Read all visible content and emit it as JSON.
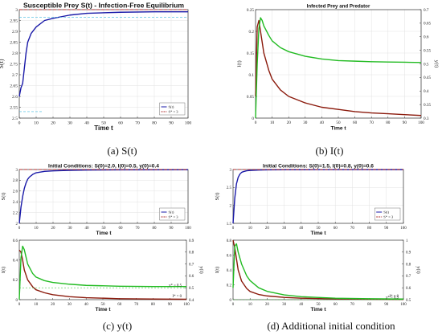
{
  "captions": {
    "a": "(a) S(t)",
    "b": "(b) I(t)",
    "c": "(c) y(t)",
    "d": "(d) Additional initial condition"
  },
  "colors": {
    "S": "#1a1aa8",
    "ref": "#b03030",
    "I": "#8b1a0c",
    "y": "#22bb22",
    "dashCyan": "#3fb7e0",
    "dashYellow": "#c8c83a"
  },
  "chart_data": [
    {
      "id": "a",
      "type": "line",
      "title": "Susceptible Prey S(t) - Infection-Free Equilibrium",
      "xlabel": "Time t",
      "ylabel": "S(t)",
      "xlim": [
        0,
        100
      ],
      "ylim": [
        2.5,
        3.0
      ],
      "xticks": [
        0,
        10,
        20,
        30,
        40,
        50,
        60,
        70,
        80,
        90,
        100
      ],
      "yticks": [
        2.5,
        2.55,
        2.6,
        2.65,
        2.7,
        2.75,
        2.8,
        2.85,
        2.9,
        2.95,
        3
      ],
      "grid": true,
      "legend": {
        "position": "lower-right",
        "entries": [
          "S(t)",
          "S* = 3"
        ]
      },
      "series": [
        {
          "name": "S(t)",
          "x": [
            0,
            1,
            2,
            3,
            4,
            5,
            7,
            10,
            15,
            20,
            30,
            40,
            60,
            80,
            100
          ],
          "y": [
            2.6,
            2.64,
            2.66,
            2.73,
            2.8,
            2.85,
            2.89,
            2.92,
            2.95,
            2.96,
            2.975,
            2.983,
            2.988,
            2.99,
            2.99
          ]
        },
        {
          "name": "S* = 3",
          "x": [
            0,
            100
          ],
          "y": [
            3,
            3
          ]
        }
      ]
    },
    {
      "id": "b",
      "type": "line",
      "title": "Infected Prey and Predator",
      "xlabel": "Time t",
      "ylabel": "I(t)",
      "ylabel_right": "y(t)",
      "xlim": [
        0,
        100
      ],
      "ylim": [
        0,
        0.25
      ],
      "ylim_right": [
        0.3,
        0.7
      ],
      "xticks": [
        0,
        10,
        20,
        30,
        40,
        50,
        60,
        70,
        80,
        90,
        100
      ],
      "yticks": [
        0,
        0.05,
        0.1,
        0.15,
        0.2,
        0.25
      ],
      "yticks_right": [
        0.3,
        0.35,
        0.4,
        0.45,
        0.5,
        0.55,
        0.6,
        0.65,
        0.7
      ],
      "grid": true,
      "series": [
        {
          "name": "I(t)",
          "x": [
            0,
            1,
            2,
            3,
            5,
            8,
            10,
            15,
            20,
            30,
            40,
            50,
            60,
            70,
            80,
            90,
            100
          ],
          "y": [
            0.05,
            0.21,
            0.225,
            0.2,
            0.15,
            0.11,
            0.09,
            0.065,
            0.05,
            0.035,
            0.025,
            0.02,
            0.015,
            0.012,
            0.01,
            0.008,
            0.006
          ]
        },
        {
          "name": "y(t)",
          "axis": "right",
          "x": [
            0,
            1,
            2,
            3,
            4,
            5,
            8,
            10,
            15,
            20,
            30,
            40,
            50,
            60,
            70,
            80,
            90,
            100
          ],
          "y": [
            0.3,
            0.5,
            0.63,
            0.67,
            0.66,
            0.64,
            0.605,
            0.585,
            0.56,
            0.545,
            0.528,
            0.518,
            0.512,
            0.51,
            0.508,
            0.507,
            0.506,
            0.505
          ]
        }
      ]
    },
    {
      "id": "c1",
      "type": "line",
      "title": "Initial Conditions: S(0)=2.0, I(0)=0.5, y(0)=0.4",
      "xlabel": "Time t",
      "ylabel": "S(t)",
      "xlim": [
        0,
        100
      ],
      "ylim": [
        2,
        3
      ],
      "xticks": [
        0,
        10,
        20,
        30,
        40,
        50,
        60,
        70,
        80,
        90,
        100
      ],
      "yticks": [
        2,
        2.2,
        2.4,
        2.6,
        2.8,
        3
      ],
      "grid": true,
      "legend": {
        "position": "lower-right",
        "entries": [
          "S(t)",
          "S* = 3"
        ]
      },
      "series": [
        {
          "name": "S(t)",
          "x": [
            0,
            1,
            2,
            3,
            4,
            5,
            6,
            8,
            10,
            15,
            20,
            30,
            40,
            60,
            100
          ],
          "y": [
            2,
            2.3,
            2.5,
            2.65,
            2.75,
            2.82,
            2.86,
            2.91,
            2.94,
            2.965,
            2.975,
            2.985,
            2.99,
            2.993,
            2.995
          ]
        },
        {
          "name": "S* = 3",
          "x": [
            0,
            100
          ],
          "y": [
            3,
            3
          ]
        }
      ]
    },
    {
      "id": "c2",
      "type": "line",
      "xlabel": "Time t",
      "ylabel": "I(t)",
      "ylabel_right": "y(t)",
      "xlim": [
        0,
        100
      ],
      "ylim": [
        0,
        0.6
      ],
      "ylim_right": [
        0.4,
        0.9
      ],
      "xticks": [
        0,
        10,
        20,
        30,
        40,
        50,
        60,
        70,
        80,
        90,
        100
      ],
      "yticks": [
        0,
        0.2,
        0.4,
        0.6
      ],
      "yticks_right": [
        0.4,
        0.5,
        0.6,
        0.7,
        0.8,
        0.9
      ],
      "annotations": [
        "y* = 0.5",
        "I* = 0"
      ],
      "series": [
        {
          "name": "I(t)",
          "x": [
            0,
            1,
            2,
            3,
            5,
            8,
            10,
            15,
            20,
            30,
            40,
            60,
            80,
            100
          ],
          "y": [
            0.5,
            0.48,
            0.4,
            0.3,
            0.2,
            0.13,
            0.1,
            0.07,
            0.05,
            0.03,
            0.02,
            0.01,
            0.006,
            0.004
          ]
        },
        {
          "name": "y(t)",
          "axis": "right",
          "x": [
            0,
            1,
            2,
            3,
            4,
            5,
            8,
            10,
            15,
            20,
            30,
            40,
            60,
            80,
            100
          ],
          "y": [
            0.4,
            0.75,
            0.85,
            0.82,
            0.76,
            0.7,
            0.62,
            0.59,
            0.56,
            0.545,
            0.53,
            0.52,
            0.513,
            0.51,
            0.51
          ]
        }
      ]
    },
    {
      "id": "d1",
      "type": "line",
      "title": "Initial Conditions: S(0)=1.5, I(0)=0.8, y(0)=0.6",
      "xlabel": "Time t",
      "ylabel": "S(t)",
      "xlim": [
        0,
        100
      ],
      "ylim": [
        1.5,
        3
      ],
      "xticks": [
        0,
        10,
        20,
        30,
        40,
        50,
        60,
        70,
        80,
        90,
        100
      ],
      "yticks": [
        1.5,
        2,
        2.5,
        3
      ],
      "grid": true,
      "legend": {
        "position": "lower-right",
        "entries": [
          "S(t)",
          "S* = 3"
        ]
      },
      "series": [
        {
          "name": "S(t)",
          "x": [
            0,
            1,
            2,
            3,
            4,
            5,
            6,
            8,
            10,
            15,
            20,
            30,
            50,
            100
          ],
          "y": [
            1.5,
            2.2,
            2.6,
            2.78,
            2.87,
            2.92,
            2.94,
            2.965,
            2.975,
            2.985,
            2.99,
            2.993,
            2.995,
            2.997
          ]
        },
        {
          "name": "S* = 3",
          "x": [
            0,
            100
          ],
          "y": [
            3,
            3
          ]
        }
      ]
    },
    {
      "id": "d2",
      "type": "line",
      "xlabel": "Time t",
      "ylabel": "I(t)",
      "ylabel_right": "y(t)",
      "xlim": [
        0,
        100
      ],
      "ylim": [
        0,
        0.8
      ],
      "ylim_right": [
        0.5,
        1.0
      ],
      "xticks": [
        0,
        10,
        20,
        30,
        40,
        50,
        60,
        70,
        80,
        90,
        100
      ],
      "yticks": [
        0,
        0.2,
        0.4,
        0.6,
        0.8
      ],
      "yticks_right": [
        0.5,
        0.6,
        0.7,
        0.8,
        0.9,
        1
      ],
      "annotations": [
        "y* = 0.5",
        "I* = 0"
      ],
      "series": [
        {
          "name": "I(t)",
          "x": [
            0,
            1,
            2,
            3,
            5,
            8,
            10,
            15,
            20,
            30,
            40,
            60,
            80,
            100
          ],
          "y": [
            0.8,
            0.7,
            0.55,
            0.4,
            0.25,
            0.15,
            0.11,
            0.07,
            0.05,
            0.03,
            0.02,
            0.01,
            0.006,
            0.004
          ]
        },
        {
          "name": "y(t)",
          "axis": "right",
          "x": [
            0,
            1,
            2,
            3,
            5,
            8,
            10,
            15,
            20,
            30,
            40,
            60,
            80,
            100
          ],
          "y": [
            0.6,
            0.95,
            0.97,
            0.9,
            0.8,
            0.7,
            0.66,
            0.6,
            0.57,
            0.54,
            0.525,
            0.512,
            0.508,
            0.505
          ]
        }
      ]
    }
  ]
}
